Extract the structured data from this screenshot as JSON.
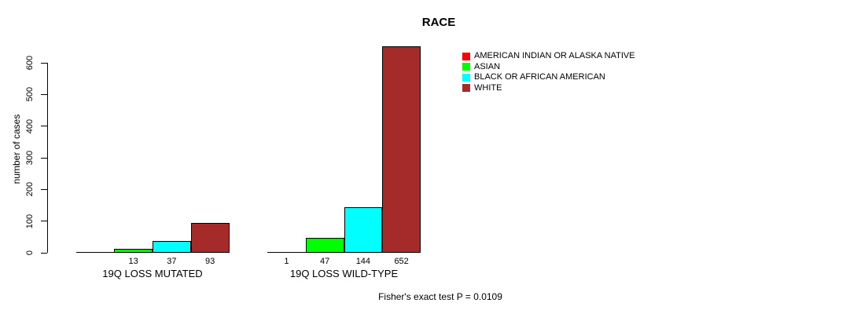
{
  "figure": {
    "title": "RACE",
    "y_axis_label": "number of cases",
    "footnote": "Fisher's exact test P = 0.0109"
  },
  "chart_data": {
    "type": "bar",
    "title": "RACE",
    "xlabel": "",
    "ylabel": "number of cases",
    "ylim": [
      0,
      660
    ],
    "yticks": [
      0,
      100,
      200,
      300,
      400,
      500,
      600
    ],
    "grid": false,
    "legend_position": "top-right",
    "categories": [
      "AMERICAN INDIAN OR ALASKA NATIVE",
      "ASIAN",
      "BLACK OR AFRICAN AMERICAN",
      "WHITE"
    ],
    "series_colors": [
      "#FF0000",
      "#00FF00",
      "#00FFFF",
      "#A52A2A"
    ],
    "groups": [
      {
        "label": "19Q LOSS MUTATED",
        "values": [
          0,
          13,
          37,
          93
        ],
        "bar_labels": [
          "",
          "13",
          "37",
          "93"
        ]
      },
      {
        "label": "19Q LOSS WILD-TYPE",
        "values": [
          1,
          47,
          144,
          652
        ],
        "bar_labels": [
          "1",
          "47",
          "144",
          "652"
        ]
      }
    ],
    "legend": [
      {
        "label": "AMERICAN INDIAN OR ALASKA NATIVE",
        "color": "#FF0000"
      },
      {
        "label": "ASIAN",
        "color": "#00FF00"
      },
      {
        "label": "BLACK OR AFRICAN AMERICAN",
        "color": "#00FFFF"
      },
      {
        "label": "WHITE",
        "color": "#A52A2A"
      }
    ],
    "annotation": "Fisher's exact test P = 0.0109"
  }
}
